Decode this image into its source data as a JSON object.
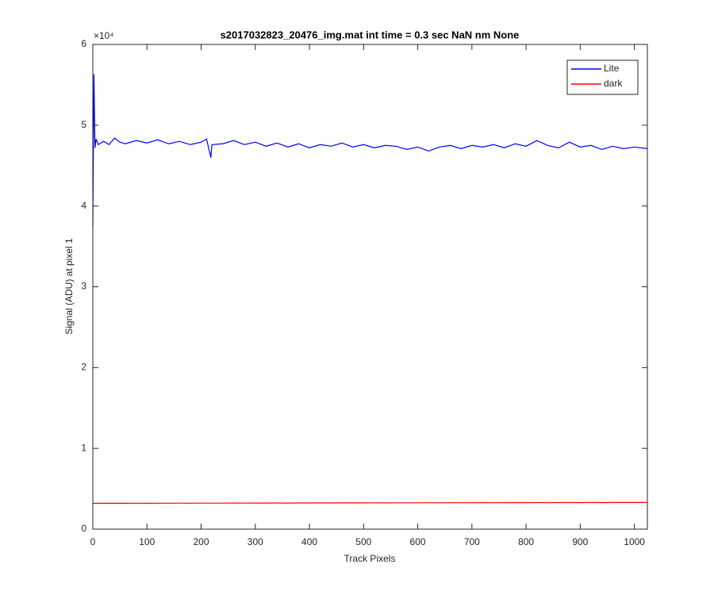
{
  "chart_data": {
    "type": "line",
    "title": "s2017032823_20476_img.mat int time = 0.3 sec  NaN nm None",
    "x_label": "Track Pixels",
    "y_label": "Signal (ADU) at pixel 1",
    "y_exponent_label": "×10⁴",
    "x": [
      0,
      2,
      4,
      6,
      10,
      20,
      30,
      40,
      50,
      60,
      80,
      100,
      120,
      140,
      160,
      180,
      200,
      210,
      218,
      220,
      240,
      260,
      280,
      300,
      320,
      340,
      360,
      380,
      400,
      420,
      440,
      460,
      480,
      500,
      520,
      540,
      560,
      580,
      600,
      620,
      640,
      660,
      680,
      700,
      720,
      740,
      760,
      780,
      800,
      820,
      840,
      860,
      880,
      900,
      920,
      940,
      960,
      980,
      1000,
      1024
    ],
    "series": [
      {
        "name": "Lite",
        "color": "#0000ff",
        "values": [
          37500,
          56300,
          47200,
          48300,
          47600,
          48000,
          47600,
          48400,
          47900,
          47700,
          48100,
          47800,
          48200,
          47700,
          48000,
          47600,
          47900,
          48300,
          46000,
          47600,
          47700,
          48100,
          47600,
          47900,
          47400,
          47800,
          47300,
          47700,
          47200,
          47600,
          47400,
          47800,
          47300,
          47600,
          47200,
          47500,
          47400,
          47000,
          47300,
          46800,
          47300,
          47500,
          47100,
          47500,
          47300,
          47600,
          47200,
          47700,
          47400,
          48100,
          47500,
          47200,
          47900,
          47300,
          47500,
          47000,
          47400,
          47100,
          47300,
          47100
        ]
      },
      {
        "name": "dark",
        "color": "#ff0000",
        "values": [
          3200,
          3190,
          3210,
          3200,
          3200,
          3210,
          3200,
          3200,
          3210,
          3200,
          3210,
          3200,
          3210,
          3210,
          3220,
          3210,
          3220,
          3220,
          3210,
          3220,
          3220,
          3230,
          3220,
          3230,
          3230,
          3240,
          3230,
          3240,
          3240,
          3250,
          3240,
          3250,
          3250,
          3250,
          3260,
          3250,
          3260,
          3260,
          3260,
          3270,
          3260,
          3270,
          3270,
          3270,
          3280,
          3270,
          3280,
          3280,
          3280,
          3290,
          3280,
          3290,
          3290,
          3290,
          3300,
          3290,
          3300,
          3300,
          3300,
          3300
        ]
      }
    ],
    "xlim": [
      0,
      1024
    ],
    "xticks": [
      0,
      100,
      200,
      300,
      400,
      500,
      600,
      700,
      800,
      900,
      1000
    ],
    "ylim": [
      0,
      60000
    ],
    "yticks": [
      {
        "value": 0,
        "label": "0"
      },
      {
        "value": 10000,
        "label": "1"
      },
      {
        "value": 20000,
        "label": "2"
      },
      {
        "value": 30000,
        "label": "3"
      },
      {
        "value": 40000,
        "label": "4"
      },
      {
        "value": 50000,
        "label": "5"
      },
      {
        "value": 60000,
        "label": "6"
      }
    ],
    "grid": false,
    "legend": "northeast"
  }
}
